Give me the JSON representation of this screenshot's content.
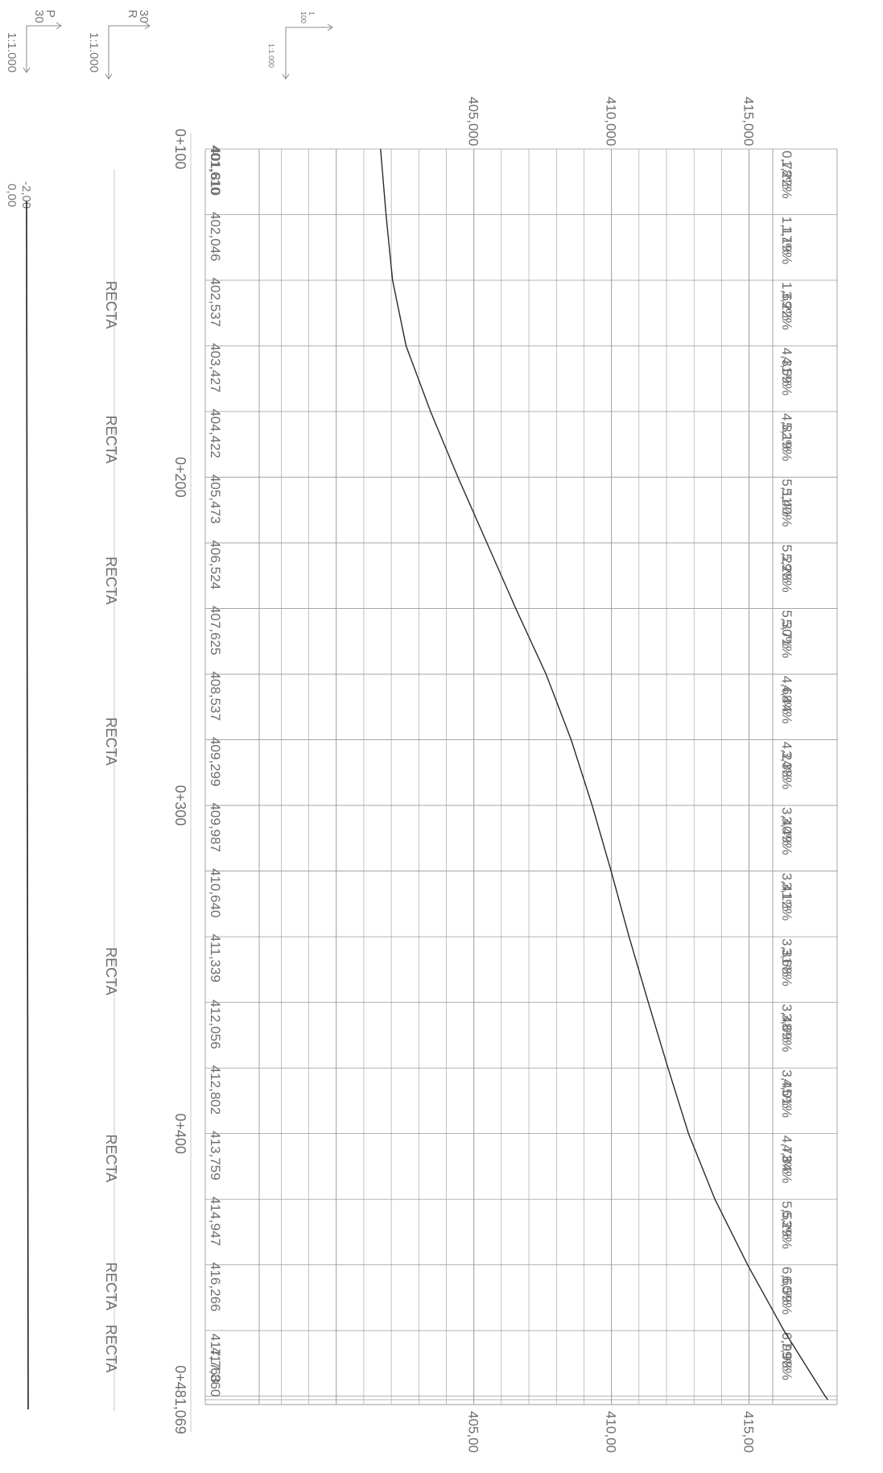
{
  "chart_data": {
    "type": "line",
    "orientation": "rotated-90",
    "colors": {
      "grid": "#9a9a9a",
      "text": "#6e6e6e",
      "curve": "#2a2a2a"
    },
    "scale_legends": [
      {
        "scale": "1:1.000",
        "arrow_label": "P",
        "arrow_value": "30"
      },
      {
        "scale": "1:1.000",
        "arrow_label": "R",
        "arrow_value": "30"
      },
      {
        "scale": "1:1.000",
        "arrow_label": "1",
        "arrow_value": "100"
      }
    ],
    "cant_labels": [
      "-2,00",
      "0,00"
    ],
    "chainage_ticks": [
      {
        "label": "0+100",
        "x": 100
      },
      {
        "label": "0+200",
        "x": 200
      },
      {
        "label": "0+300",
        "x": 300
      },
      {
        "label": "0+400",
        "x": 400
      },
      {
        "label": "0+481,069",
        "x": 481.069
      }
    ],
    "alignment_labels": [
      {
        "label": "RECTA",
        "x": 150
      },
      {
        "label": "RECTA",
        "x": 191
      },
      {
        "label": "RECTA",
        "x": 234
      },
      {
        "label": "RECTA",
        "x": 283
      },
      {
        "label": "RECTA",
        "x": 353
      },
      {
        "label": "RECTA",
        "x": 410
      },
      {
        "label": "RECTA",
        "x": 449
      },
      {
        "label": "RECTA",
        "x": 468
      }
    ],
    "elevation_axis_top": [
      "405,000",
      "410,000",
      "415,000"
    ],
    "elevation_axis_bottom": [
      "405,00",
      "410,00",
      "415,00"
    ],
    "elevation_ticks": [
      405,
      410,
      415
    ],
    "ylim": [
      397.2,
      418.2
    ],
    "xlim": [
      100,
      481.069
    ],
    "x": [
      100,
      120,
      140,
      160,
      180,
      200,
      220,
      240,
      260,
      280,
      300,
      320,
      340,
      360,
      380,
      400,
      420,
      440,
      460,
      480,
      481.069
    ],
    "elevation_labels": [
      "401,610",
      "401,810",
      "402,046",
      "402,537",
      "403,427",
      "404,422",
      "405,473",
      "406,524",
      "407,625",
      "408,537",
      "409,299",
      "409,987",
      "410,640",
      "411,339",
      "412,056",
      "412,802",
      "413,759",
      "414,947",
      "416,266",
      "417,763",
      "417,860"
    ],
    "elevations": [
      401.61,
      401.81,
      402.046,
      402.537,
      403.427,
      404.422,
      405.473,
      406.524,
      407.625,
      408.537,
      409.299,
      409.987,
      410.64,
      411.339,
      412.056,
      412.802,
      413.759,
      414.947,
      416.266,
      417.763,
      417.86
    ],
    "slope_labels_a": [
      "0,78%",
      "1,22%",
      "1,17%",
      "1,19%",
      "1,69%",
      "3,22%",
      "4,31%",
      "4,59%",
      "4,82%",
      "5,19%",
      "5,11%",
      "5,40%",
      "5,29%",
      "5,28%",
      "5,30%",
      "5,71%",
      "4,68%",
      "4,44%",
      "4,24%",
      "3,38%",
      "3,40%",
      "3,49%",
      "3,41%",
      "3,12%",
      "3,31%",
      "3,68%",
      "3,48%",
      "3,69%",
      "3,45%",
      "4,01%",
      "4,73%",
      "4,84%",
      "5,53%",
      "6,29%",
      "6,60%",
      "6,59%",
      "6,99%",
      "7,98%"
    ]
  }
}
